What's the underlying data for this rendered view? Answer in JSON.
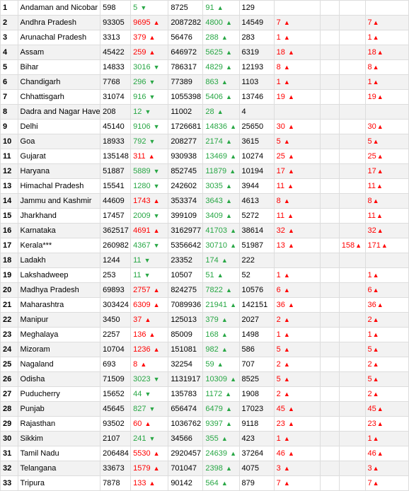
{
  "colors": {
    "red": "#ff0000",
    "green": "#28a745",
    "border": "#dddddd",
    "alt": "#f2f2f2",
    "bg": "#ffffff"
  },
  "arrow_up": "▲",
  "arrow_down": "▼",
  "rows": [
    {
      "idx": "1",
      "name": "Andaman and Nicobar Islands",
      "c3": "598",
      "c4v": "5",
      "c4d": "green_down",
      "c5": "8725",
      "c6v": "91",
      "c6d": "green_up",
      "c7": "129",
      "c8v": "",
      "c8d": "",
      "c11v": "",
      "c11d": ""
    },
    {
      "idx": "2",
      "name": "Andhra Pradesh",
      "c3": "93305",
      "c4v": "9695",
      "c4d": "red_up",
      "c5": "2087282",
      "c6v": "4800",
      "c6d": "green_up",
      "c7": "14549",
      "c8v": "7",
      "c8d": "red_up",
      "c11v": "7",
      "c11d": "red_up"
    },
    {
      "idx": "3",
      "name": "Arunachal Pradesh",
      "c3": "3313",
      "c4v": "379",
      "c4d": "red_up",
      "c5": "56476",
      "c6v": "288",
      "c6d": "green_up",
      "c7": "283",
      "c8v": "1",
      "c8d": "red_up",
      "c11v": "1",
      "c11d": "red_up"
    },
    {
      "idx": "4",
      "name": "Assam",
      "c3": "45422",
      "c4v": "259",
      "c4d": "red_up",
      "c5": "646972",
      "c6v": "5625",
      "c6d": "green_up",
      "c7": "6319",
      "c8v": "18",
      "c8d": "red_up",
      "c11v": "18",
      "c11d": "red_up"
    },
    {
      "idx": "5",
      "name": "Bihar",
      "c3": "14833",
      "c4v": "3016",
      "c4d": "green_down",
      "c5": "786317",
      "c6v": "4829",
      "c6d": "green_up",
      "c7": "12193",
      "c8v": "8",
      "c8d": "red_up",
      "c11v": "8",
      "c11d": "red_up"
    },
    {
      "idx": "6",
      "name": "Chandigarh",
      "c3": "7768",
      "c4v": "296",
      "c4d": "green_down",
      "c5": "77389",
      "c6v": "863",
      "c6d": "green_up",
      "c7": "1103",
      "c8v": "1",
      "c8d": "red_up",
      "c11v": "1",
      "c11d": "red_up"
    },
    {
      "idx": "7",
      "name": "Chhattisgarh",
      "c3": "31074",
      "c4v": "916",
      "c4d": "green_down",
      "c5": "1055398",
      "c6v": "5406",
      "c6d": "green_up",
      "c7": "13746",
      "c8v": "19",
      "c8d": "red_up",
      "c11v": "19",
      "c11d": "red_up"
    },
    {
      "idx": "8",
      "name": "Dadra and Nagar Haveli and Daman and Diu",
      "c3": "208",
      "c4v": "12",
      "c4d": "green_down",
      "c5": "11002",
      "c6v": "28",
      "c6d": "green_up",
      "c7": "4",
      "c8v": "",
      "c8d": "",
      "c11v": "",
      "c11d": ""
    },
    {
      "idx": "9",
      "name": "Delhi",
      "c3": "45140",
      "c4v": "9106",
      "c4d": "green_down",
      "c5": "1726681",
      "c6v": "14836",
      "c6d": "green_up",
      "c7": "25650",
      "c8v": "30",
      "c8d": "red_up",
      "c11v": "30",
      "c11d": "red_up"
    },
    {
      "idx": "10",
      "name": "Goa",
      "c3": "18933",
      "c4v": "792",
      "c4d": "green_down",
      "c5": "208277",
      "c6v": "2174",
      "c6d": "green_up",
      "c7": "3615",
      "c8v": "5",
      "c8d": "red_up",
      "c11v": "5",
      "c11d": "red_up"
    },
    {
      "idx": "11",
      "name": "Gujarat",
      "c3": "135148",
      "c4v": "311",
      "c4d": "red_up",
      "c5": "930938",
      "c6v": "13469",
      "c6d": "green_up",
      "c7": "10274",
      "c8v": "25",
      "c8d": "red_up",
      "c11v": "25",
      "c11d": "red_up"
    },
    {
      "idx": "12",
      "name": "Haryana",
      "c3": "51887",
      "c4v": "5889",
      "c4d": "green_down",
      "c5": "852745",
      "c6v": "11879",
      "c6d": "green_up",
      "c7": "10194",
      "c8v": "17",
      "c8d": "red_up",
      "c11v": "17",
      "c11d": "red_up"
    },
    {
      "idx": "13",
      "name": "Himachal Pradesh",
      "c3": "15541",
      "c4v": "1280",
      "c4d": "green_down",
      "c5": "242602",
      "c6v": "3035",
      "c6d": "green_up",
      "c7": "3944",
      "c8v": "11",
      "c8d": "red_up",
      "c11v": "11",
      "c11d": "red_up"
    },
    {
      "idx": "14",
      "name": "Jammu and Kashmir",
      "c3": "44609",
      "c4v": "1743",
      "c4d": "red_up",
      "c5": "353374",
      "c6v": "3643",
      "c6d": "green_up",
      "c7": "4613",
      "c8v": "8",
      "c8d": "red_up",
      "c11v": "8",
      "c11d": "red_up"
    },
    {
      "idx": "15",
      "name": "Jharkhand",
      "c3": "17457",
      "c4v": "2009",
      "c4d": "green_down",
      "c5": "399109",
      "c6v": "3409",
      "c6d": "green_up",
      "c7": "5272",
      "c8v": "11",
      "c8d": "red_up",
      "c11v": "11",
      "c11d": "red_up"
    },
    {
      "idx": "16",
      "name": "Karnataka",
      "c3": "362517",
      "c4v": "4691",
      "c4d": "red_up",
      "c5": "3162977",
      "c6v": "41703",
      "c6d": "green_up",
      "c7": "38614",
      "c8v": "32",
      "c8d": "red_up",
      "c11v": "32",
      "c11d": "red_up"
    },
    {
      "idx": "17",
      "name": "Kerala***",
      "c3": "260982",
      "c4v": "4367",
      "c4d": "green_down",
      "c5": "5356642",
      "c6v": "30710",
      "c6d": "green_up",
      "c7": "51987",
      "c8v": "13",
      "c8d": "red_up",
      "c10v": "158",
      "c10d": "red_up",
      "c11v": "171",
      "c11d": "red_up"
    },
    {
      "idx": "18",
      "name": "Ladakh",
      "c3": "1244",
      "c4v": "11",
      "c4d": "green_down",
      "c5": "23352",
      "c6v": "174",
      "c6d": "green_up",
      "c7": "222",
      "c8v": "",
      "c8d": "",
      "c11v": "",
      "c11d": ""
    },
    {
      "idx": "19",
      "name": "Lakshadweep",
      "c3": "253",
      "c4v": "11",
      "c4d": "green_down",
      "c5": "10507",
      "c6v": "51",
      "c6d": "green_up",
      "c7": "52",
      "c8v": "1",
      "c8d": "red_up",
      "c11v": "1",
      "c11d": "red_up"
    },
    {
      "idx": "20",
      "name": "Madhya Pradesh",
      "c3": "69893",
      "c4v": "2757",
      "c4d": "red_up",
      "c5": "824275",
      "c6v": "7822",
      "c6d": "green_up",
      "c7": "10576",
      "c8v": "6",
      "c8d": "red_up",
      "c11v": "6",
      "c11d": "red_up"
    },
    {
      "idx": "21",
      "name": "Maharashtra",
      "c3": "303424",
      "c4v": "6309",
      "c4d": "red_up",
      "c5": "7089936",
      "c6v": "21941",
      "c6d": "green_up",
      "c7": "142151",
      "c8v": "36",
      "c8d": "red_up",
      "c11v": "36",
      "c11d": "red_up"
    },
    {
      "idx": "22",
      "name": "Manipur",
      "c3": "3450",
      "c4v": "37",
      "c4d": "red_up",
      "c5": "125013",
      "c6v": "379",
      "c6d": "green_up",
      "c7": "2027",
      "c8v": "2",
      "c8d": "red_up",
      "c11v": "2",
      "c11d": "red_up"
    },
    {
      "idx": "23",
      "name": "Meghalaya",
      "c3": "2257",
      "c4v": "136",
      "c4d": "red_up",
      "c5": "85009",
      "c6v": "168",
      "c6d": "green_up",
      "c7": "1498",
      "c8v": "1",
      "c8d": "red_up",
      "c11v": "1",
      "c11d": "red_up"
    },
    {
      "idx": "24",
      "name": "Mizoram",
      "c3": "10704",
      "c4v": "1236",
      "c4d": "red_up",
      "c5": "151081",
      "c6v": "982",
      "c6d": "green_up",
      "c7": "586",
      "c8v": "5",
      "c8d": "red_up",
      "c11v": "5",
      "c11d": "red_up"
    },
    {
      "idx": "25",
      "name": "Nagaland",
      "c3": "693",
      "c4v": "8",
      "c4d": "red_up",
      "c5": "32254",
      "c6v": "59",
      "c6d": "green_up",
      "c7": "707",
      "c8v": "2",
      "c8d": "red_up",
      "c11v": "2",
      "c11d": "red_up"
    },
    {
      "idx": "26",
      "name": "Odisha",
      "c3": "71509",
      "c4v": "3023",
      "c4d": "green_down",
      "c5": "1131917",
      "c6v": "10309",
      "c6d": "green_up",
      "c7": "8525",
      "c8v": "5",
      "c8d": "red_up",
      "c11v": "5",
      "c11d": "red_up"
    },
    {
      "idx": "27",
      "name": "Puducherry",
      "c3": "15652",
      "c4v": "44",
      "c4d": "green_down",
      "c5": "135783",
      "c6v": "1172",
      "c6d": "green_up",
      "c7": "1908",
      "c8v": "2",
      "c8d": "red_up",
      "c11v": "2",
      "c11d": "red_up"
    },
    {
      "idx": "28",
      "name": "Punjab",
      "c3": "45645",
      "c4v": "827",
      "c4d": "green_down",
      "c5": "656474",
      "c6v": "6479",
      "c6d": "green_up",
      "c7": "17023",
      "c8v": "45",
      "c8d": "red_up",
      "c11v": "45",
      "c11d": "red_up"
    },
    {
      "idx": "29",
      "name": "Rajasthan",
      "c3": "93502",
      "c4v": "60",
      "c4d": "red_up",
      "c5": "1036762",
      "c6v": "9397",
      "c6d": "green_up",
      "c7": "9118",
      "c8v": "23",
      "c8d": "red_up",
      "c11v": "23",
      "c11d": "red_up"
    },
    {
      "idx": "30",
      "name": "Sikkim",
      "c3": "2107",
      "c4v": "241",
      "c4d": "green_down",
      "c5": "34566",
      "c6v": "355",
      "c6d": "green_up",
      "c7": "423",
      "c8v": "1",
      "c8d": "red_up",
      "c11v": "1",
      "c11d": "red_up"
    },
    {
      "idx": "31",
      "name": "Tamil Nadu",
      "c3": "206484",
      "c4v": "5530",
      "c4d": "red_up",
      "c5": "2920457",
      "c6v": "24639",
      "c6d": "green_up",
      "c7": "37264",
      "c8v": "46",
      "c8d": "red_up",
      "c11v": "46",
      "c11d": "red_up"
    },
    {
      "idx": "32",
      "name": "Telangana",
      "c3": "33673",
      "c4v": "1579",
      "c4d": "red_up",
      "c5": "701047",
      "c6v": "2398",
      "c6d": "green_up",
      "c7": "4075",
      "c8v": "3",
      "c8d": "red_up",
      "c11v": "3",
      "c11d": "red_up"
    },
    {
      "idx": "33",
      "name": "Tripura",
      "c3": "7878",
      "c4v": "133",
      "c4d": "red_up",
      "c5": "90142",
      "c6v": "564",
      "c6d": "green_up",
      "c7": "879",
      "c8v": "7",
      "c8d": "red_up",
      "c11v": "7",
      "c11d": "red_up"
    }
  ]
}
